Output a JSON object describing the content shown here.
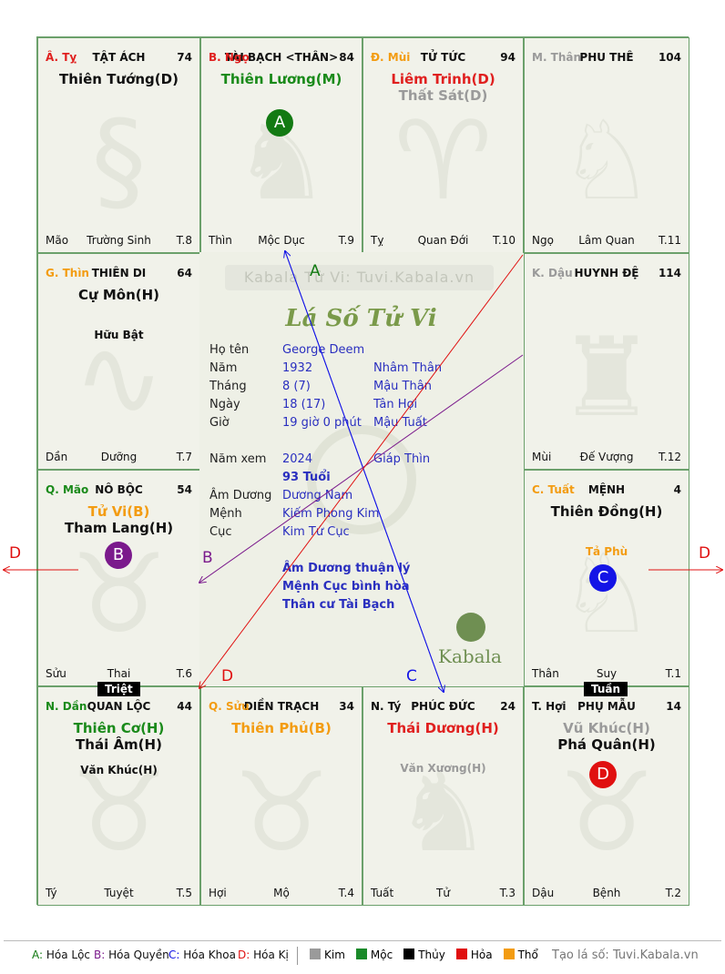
{
  "palaces": [
    {
      "can": "Â. Tỵ",
      "can_color": "#e0201f",
      "name": "TẬT ÁCH",
      "num": "74",
      "stars": [
        {
          "t": "Thiên Tướng(D)",
          "c": "#111111"
        }
      ],
      "minor": "",
      "minor_color": "#111111",
      "stage": "Mão",
      "life": "Trường Sinh",
      "month": "T.8"
    },
    {
      "can": "B. Ngọ",
      "can_color": "#e0201f",
      "name": "TÀI BẠCH <THÂN>",
      "num": "84",
      "stars": [
        {
          "t": "Thiên Lương(M)",
          "c": "#1a8a1a"
        }
      ],
      "minor": "",
      "minor_color": "#111111",
      "stage": "Thìn",
      "life": "Mộc Dục",
      "month": "T.9"
    },
    {
      "can": "Đ. Mùi",
      "can_color": "#f39c12",
      "name": "TỬ TỨC",
      "num": "94",
      "stars": [
        {
          "t": "Liêm Trinh(D)",
          "c": "#e0201f"
        },
        {
          "t": "Thất Sát(D)",
          "c": "#9a9a9a"
        }
      ],
      "minor": "",
      "minor_color": "#111111",
      "stage": "Tỵ",
      "life": "Quan Đới",
      "month": "T.10"
    },
    {
      "can": "M. Thân",
      "can_color": "#9a9a9a",
      "name": "PHU THÊ",
      "num": "104",
      "stars": [],
      "minor": "",
      "minor_color": "#111111",
      "stage": "Ngọ",
      "life": "Lâm Quan",
      "month": "T.11"
    },
    {
      "can": "G. Thìn",
      "can_color": "#f39c12",
      "name": "THIÊN DI",
      "num": "64",
      "stars": [
        {
          "t": "Cự Môn(H)",
          "c": "#111111"
        }
      ],
      "minor": "Hữu Bật",
      "minor_color": "#111111",
      "stage": "Dần",
      "life": "Dưỡng",
      "month": "T.7"
    },
    {
      "can": "K. Dậu",
      "can_color": "#9a9a9a",
      "name": "HUYNH ĐỆ",
      "num": "114",
      "stars": [],
      "minor": "",
      "minor_color": "#111111",
      "stage": "Mùi",
      "life": "Đế Vượng",
      "month": "T.12"
    },
    {
      "can": "Q. Mão",
      "can_color": "#1a8a1a",
      "name": "NÔ BỘC",
      "num": "54",
      "stars": [
        {
          "t": "Tử Vi(B)",
          "c": "#f39c12"
        },
        {
          "t": "Tham Lang(H)",
          "c": "#111111"
        }
      ],
      "minor": "",
      "minor_color": "#111111",
      "stage": "Sửu",
      "life": "Thai",
      "month": "T.6"
    },
    {
      "can": "C. Tuất",
      "can_color": "#f39c12",
      "name": "MỆNH",
      "num": "4",
      "stars": [
        {
          "t": "Thiên Đồng(H)",
          "c": "#111111"
        }
      ],
      "minor": "Tả Phù",
      "minor_color": "#f39c12",
      "stage": "Thân",
      "life": "Suy",
      "month": "T.1"
    },
    {
      "can": "N. Dần",
      "can_color": "#1a8a1a",
      "name": "QUAN LỘC",
      "num": "44",
      "stars": [
        {
          "t": "Thiên Cơ(H)",
          "c": "#1a8a1a"
        },
        {
          "t": "Thái Âm(H)",
          "c": "#111111"
        }
      ],
      "minor": "Văn Khúc(H)",
      "minor_color": "#111111",
      "stage": "Tý",
      "life": "Tuyệt",
      "month": "T.5"
    },
    {
      "can": "Q. Sửu",
      "can_color": "#f39c12",
      "name": "ĐIỀN TRẠCH",
      "num": "34",
      "stars": [
        {
          "t": "Thiên Phủ(B)",
          "c": "#f39c12"
        }
      ],
      "minor": "",
      "minor_color": "#111111",
      "stage": "Hợi",
      "life": "Mộ",
      "month": "T.4"
    },
    {
      "can": "N. Tý",
      "can_color": "#111111",
      "name": "PHÚC ĐỨC",
      "num": "24",
      "stars": [
        {
          "t": "Thái Dương(H)",
          "c": "#e0201f"
        }
      ],
      "minor": "Văn Xương(H)",
      "minor_color": "#9a9a9a",
      "stage": "Tuất",
      "life": "Tử",
      "month": "T.3"
    },
    {
      "can": "T. Hợi",
      "can_color": "#111111",
      "name": "PHỤ MẪU",
      "num": "14",
      "stars": [
        {
          "t": "Vũ Khúc(H)",
          "c": "#9a9a9a"
        },
        {
          "t": "Phá Quân(H)",
          "c": "#111111"
        }
      ],
      "minor": "",
      "minor_color": "#111111",
      "stage": "Dậu",
      "life": "Bệnh",
      "month": "T.2"
    }
  ],
  "center": {
    "watermark": "Kabala Tử Vi: Tuvi.Kabala.vn",
    "title": "Lá Số Tử Vi",
    "rows": [
      {
        "l": "Họ tên",
        "v": "George Deem",
        "w": ""
      },
      {
        "l": "Năm",
        "v": "1932",
        "w": "Nhâm Thân"
      },
      {
        "l": "Tháng",
        "v": "8  (7)",
        "w": "Mậu Thân"
      },
      {
        "l": "Ngày",
        "v": "18  (17)",
        "w": "Tân Hợi"
      },
      {
        "l": "Giờ",
        "v": "19 giờ 0 phút",
        "w": "Mậu Tuất"
      }
    ],
    "nam_xem_label": "Năm xem",
    "nam_xem": "2024",
    "nam_xem_can": "Giáp Thìn",
    "tuoi": "93 Tuổi",
    "rows2": [
      {
        "l": "Âm Dương",
        "v": "Dương Nam"
      },
      {
        "l": "Mệnh",
        "v": "Kiếm Phong Kim"
      },
      {
        "l": "Cục",
        "v": "Kim Tứ Cục"
      }
    ],
    "notes": [
      "Âm Dương thuận lý",
      "Mệnh Cục bình hòa",
      "Thân cư Tài Bạch"
    ],
    "brand": "Kabala"
  },
  "badges": [
    {
      "letter": "A",
      "color": "#137a13"
    },
    {
      "letter": "B",
      "color": "#7b1a8c"
    },
    {
      "letter": "C",
      "color": "#1414e6"
    },
    {
      "letter": "D",
      "color": "#e01010"
    }
  ],
  "tags": {
    "triet": "Triệt",
    "tuan": "Tuần"
  },
  "arrow_letters": {
    "a": "A",
    "b": "B",
    "c": "C",
    "d": "D"
  },
  "legend": {
    "a": "Hóa Lộc",
    "b": "Hóa Quyền",
    "c": "Hóa Khoa",
    "d": "Hóa Kị",
    "elements": [
      {
        "n": "Kim",
        "c": "#9a9a9a"
      },
      {
        "n": "Mộc",
        "c": "#1a8a2a"
      },
      {
        "n": "Thủy",
        "c": "#000000"
      },
      {
        "n": "Hỏa",
        "c": "#e01010"
      },
      {
        "n": "Thổ",
        "c": "#f39c12"
      }
    ],
    "site": "Tạo lá số: Tuvi.Kabala.vn"
  }
}
